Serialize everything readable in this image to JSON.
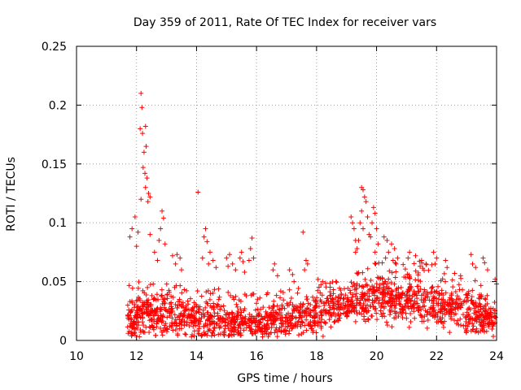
{
  "chart_data": {
    "type": "scatter",
    "title": "Day 359 of 2011, Rate Of TEC Index for receiver vars",
    "xlabel": "GPS time / hours",
    "ylabel": "ROTI / TECUs",
    "xlim": [
      10,
      24
    ],
    "ylim": [
      0,
      0.25
    ],
    "x_ticks": [
      "10",
      "12",
      "14",
      "16",
      "18",
      "20",
      "22",
      "24"
    ],
    "y_ticks": [
      "0",
      "0.05",
      "0.1",
      "0.15",
      "0.2",
      "0.25"
    ],
    "x_tick_values": [
      10,
      12,
      14,
      16,
      18,
      20,
      22,
      24
    ],
    "y_tick_values": [
      0,
      0.05,
      0.1,
      0.15,
      0.2,
      0.25
    ],
    "grid": true,
    "marker": "+",
    "color": "#ff0000",
    "series": [
      {
        "name": "ROTI",
        "points": [
          [
            12.15,
            0.21
          ],
          [
            12.18,
            0.198
          ],
          [
            12.12,
            0.18
          ],
          [
            12.2,
            0.176
          ],
          [
            12.3,
            0.182
          ],
          [
            12.25,
            0.16
          ],
          [
            12.32,
            0.165
          ],
          [
            12.22,
            0.147
          ],
          [
            12.28,
            0.142
          ],
          [
            12.35,
            0.138
          ],
          [
            12.3,
            0.13
          ],
          [
            12.4,
            0.125
          ],
          [
            12.15,
            0.12
          ],
          [
            12.38,
            0.118
          ],
          [
            12.45,
            0.122
          ],
          [
            14.05,
            0.126
          ],
          [
            11.95,
            0.105
          ],
          [
            11.85,
            0.095
          ],
          [
            12.05,
            0.092
          ],
          [
            11.78,
            0.088
          ],
          [
            12.0,
            0.08
          ],
          [
            12.85,
            0.11
          ],
          [
            12.9,
            0.104
          ],
          [
            12.8,
            0.095
          ],
          [
            12.75,
            0.085
          ],
          [
            12.95,
            0.082
          ],
          [
            12.45,
            0.09
          ],
          [
            12.6,
            0.075
          ],
          [
            12.7,
            0.068
          ],
          [
            13.35,
            0.073
          ],
          [
            13.45,
            0.07
          ],
          [
            13.3,
            0.065
          ],
          [
            13.2,
            0.072
          ],
          [
            13.5,
            0.06
          ],
          [
            14.3,
            0.095
          ],
          [
            14.25,
            0.088
          ],
          [
            14.35,
            0.084
          ],
          [
            14.45,
            0.075
          ],
          [
            14.2,
            0.07
          ],
          [
            14.55,
            0.068
          ],
          [
            14.65,
            0.062
          ],
          [
            14.4,
            0.065
          ],
          [
            15.1,
            0.073
          ],
          [
            15.2,
            0.065
          ],
          [
            15.0,
            0.07
          ],
          [
            15.3,
            0.06
          ],
          [
            15.05,
            0.063
          ],
          [
            15.5,
            0.075
          ],
          [
            15.45,
            0.07
          ],
          [
            15.55,
            0.067
          ],
          [
            15.6,
            0.058
          ],
          [
            15.85,
            0.087
          ],
          [
            15.8,
            0.078
          ],
          [
            15.9,
            0.07
          ],
          [
            15.75,
            0.068
          ],
          [
            16.6,
            0.065
          ],
          [
            16.55,
            0.06
          ],
          [
            16.7,
            0.055
          ],
          [
            17.1,
            0.06
          ],
          [
            17.2,
            0.056
          ],
          [
            17.25,
            0.05
          ],
          [
            17.55,
            0.092
          ],
          [
            17.65,
            0.068
          ],
          [
            17.7,
            0.065
          ],
          [
            17.6,
            0.06
          ],
          [
            18.05,
            0.052
          ],
          [
            18.2,
            0.05
          ],
          [
            19.15,
            0.105
          ],
          [
            19.2,
            0.1
          ],
          [
            19.25,
            0.095
          ],
          [
            19.3,
            0.085
          ],
          [
            19.35,
            0.078
          ],
          [
            19.5,
            0.13
          ],
          [
            19.55,
            0.128
          ],
          [
            19.6,
            0.122
          ],
          [
            19.65,
            0.118
          ],
          [
            19.5,
            0.11
          ],
          [
            19.7,
            0.105
          ],
          [
            19.45,
            0.1
          ],
          [
            19.55,
            0.095
          ],
          [
            19.75,
            0.09
          ],
          [
            19.9,
            0.113
          ],
          [
            19.95,
            0.108
          ],
          [
            19.85,
            0.1
          ],
          [
            20.0,
            0.095
          ],
          [
            19.8,
            0.088
          ],
          [
            20.05,
            0.082
          ],
          [
            19.95,
            0.075
          ],
          [
            19.4,
            0.085
          ],
          [
            19.3,
            0.075
          ],
          [
            20.25,
            0.088
          ],
          [
            20.35,
            0.085
          ],
          [
            20.5,
            0.082
          ],
          [
            20.4,
            0.075
          ],
          [
            20.6,
            0.078
          ],
          [
            20.7,
            0.07
          ],
          [
            20.3,
            0.07
          ],
          [
            20.55,
            0.068
          ],
          [
            21.1,
            0.075
          ],
          [
            21.05,
            0.07
          ],
          [
            21.3,
            0.072
          ],
          [
            21.5,
            0.068
          ],
          [
            21.45,
            0.063
          ],
          [
            21.65,
            0.065
          ],
          [
            21.9,
            0.075
          ],
          [
            22.0,
            0.07
          ],
          [
            21.95,
            0.065
          ],
          [
            22.3,
            0.068
          ],
          [
            22.35,
            0.062
          ],
          [
            22.6,
            0.057
          ],
          [
            22.8,
            0.055
          ],
          [
            23.15,
            0.073
          ],
          [
            23.2,
            0.065
          ],
          [
            23.3,
            0.062
          ],
          [
            23.55,
            0.07
          ],
          [
            23.6,
            0.066
          ],
          [
            23.7,
            0.06
          ],
          [
            23.95,
            0.052
          ],
          [
            24.0,
            0.048
          ]
        ],
        "dense_band": {
          "note": "dense cloud of low ROTI values from 11.7 h to 24 h",
          "x_range": [
            11.7,
            24.0
          ],
          "baseline_profile": [
            [
              11.7,
              0.018
            ],
            [
              12.5,
              0.02
            ],
            [
              13.0,
              0.022
            ],
            [
              14.0,
              0.017
            ],
            [
              15.0,
              0.015
            ],
            [
              16.0,
              0.014
            ],
            [
              17.0,
              0.017
            ],
            [
              18.0,
              0.02
            ],
            [
              18.5,
              0.026
            ],
            [
              19.0,
              0.03
            ],
            [
              19.5,
              0.033
            ],
            [
              20.0,
              0.036
            ],
            [
              20.5,
              0.035
            ],
            [
              21.0,
              0.032
            ],
            [
              21.5,
              0.034
            ],
            [
              22.0,
              0.03
            ],
            [
              22.5,
              0.025
            ],
            [
              23.0,
              0.022
            ],
            [
              23.5,
              0.02
            ],
            [
              24.0,
              0.018
            ]
          ],
          "spread_profile": [
            [
              11.7,
              0.03
            ],
            [
              12.5,
              0.035
            ],
            [
              13.5,
              0.028
            ],
            [
              14.5,
              0.03
            ],
            [
              15.5,
              0.025
            ],
            [
              16.5,
              0.027
            ],
            [
              17.5,
              0.028
            ],
            [
              18.5,
              0.025
            ],
            [
              19.5,
              0.03
            ],
            [
              20.5,
              0.035
            ],
            [
              21.5,
              0.035
            ],
            [
              22.5,
              0.03
            ],
            [
              23.5,
              0.03
            ],
            [
              24.0,
              0.025
            ]
          ],
          "minimum_roti": 0.003
        }
      }
    ]
  }
}
